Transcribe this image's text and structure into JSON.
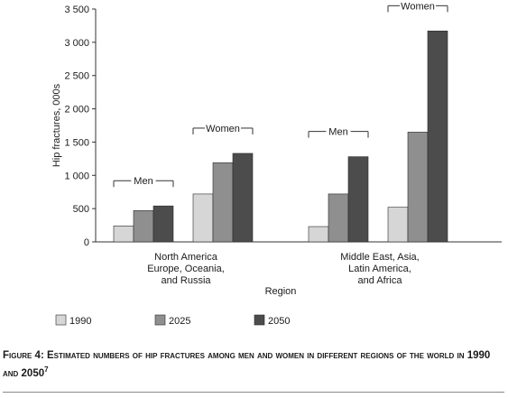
{
  "chart_data": {
    "type": "bar",
    "title": "",
    "xlabel": "Region",
    "ylabel": "Hip fractures, 000s",
    "ylim": [
      0,
      3500
    ],
    "yticks": [
      0,
      500,
      1000,
      1500,
      2000,
      2500,
      3000,
      3500
    ],
    "ytick_labels": [
      "0",
      "500",
      "1 000",
      "1 500",
      "2 000",
      "2 500",
      "3 000",
      "3 500"
    ],
    "series_names": [
      "1990",
      "2025",
      "2050"
    ],
    "colors": [
      "#d6d6d6",
      "#8f8f8f",
      "#4c4c4c"
    ],
    "regions": [
      {
        "label_lines": [
          "North America",
          "Europe, Oceania,",
          "and Russia"
        ],
        "groups": [
          {
            "label": "Men",
            "values": [
              240,
              470,
              540
            ]
          },
          {
            "label": "Women",
            "values": [
              720,
              1190,
              1330
            ]
          }
        ]
      },
      {
        "label_lines": [
          "Middle East, Asia,",
          "Latin America,",
          "and Africa"
        ],
        "groups": [
          {
            "label": "Men",
            "values": [
              230,
              720,
              1280
            ]
          },
          {
            "label": "Women",
            "values": [
              520,
              1650,
              3170
            ]
          }
        ]
      }
    ],
    "legend": {
      "position": "bottom",
      "items": [
        "1990",
        "2025",
        "2050"
      ]
    }
  },
  "caption": {
    "text": "Figure 4: Estimated numbers of hip fractures among men and women in different regions of the world in 1990 and 2050",
    "ref": "7"
  }
}
